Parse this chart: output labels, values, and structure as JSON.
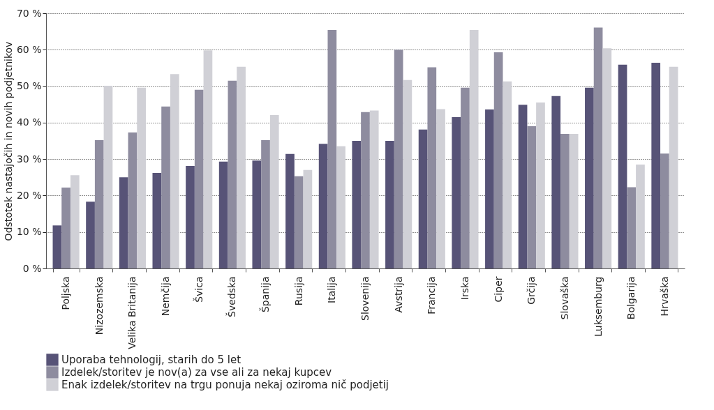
{
  "chart_data": {
    "type": "bar",
    "ylabel": "Odstotek nastajočih in novih podjetnikov",
    "categories": [
      "Poljska",
      "Nizozemska",
      "Velika Britanija",
      "Nemčija",
      "Švica",
      "Švedska",
      "Španija",
      "Rusija",
      "Italija",
      "Slovenija",
      "Avstrija",
      "Francija",
      "Irska",
      "Ciper",
      "Grčija",
      "Slovaška",
      "Luksemburg",
      "Bolgarija",
      "Hrvaška"
    ],
    "series": [
      {
        "name": "Uporaba tehnologij, starih do 5 let",
        "color": "#575377",
        "values": [
          11.8,
          18.3,
          25.0,
          26.2,
          28.1,
          29.3,
          29.6,
          31.4,
          34.2,
          35.0,
          35.0,
          38.1,
          41.5,
          43.6,
          44.9,
          47.3,
          49.6,
          55.9,
          56.4
        ]
      },
      {
        "name": "Izdelek/storitev je nov(a) za vse ali za nekaj kupcev",
        "color": "#8e8c9f",
        "values": [
          22.2,
          35.2,
          37.3,
          44.4,
          49.0,
          51.5,
          35.2,
          25.3,
          65.4,
          42.9,
          60.0,
          55.2,
          49.6,
          59.3,
          39.0,
          36.9,
          66.1,
          22.3,
          31.5
        ]
      },
      {
        "name": "Enak izdelek/storitev na trgu ponuja nekaj oziroma nič podjetij",
        "color": "#d0d0d6",
        "values": [
          25.6,
          50.1,
          49.6,
          53.3,
          59.8,
          55.3,
          42.1,
          27.0,
          33.5,
          43.3,
          51.7,
          43.7,
          65.4,
          51.3,
          45.5,
          36.9,
          60.4,
          28.5,
          55.3
        ]
      }
    ],
    "ylim": [
      0,
      70
    ],
    "yticks": [
      {
        "value": 0,
        "label": "0 %"
      },
      {
        "value": 10,
        "label": "10 %"
      },
      {
        "value": 20,
        "label": "20 %"
      },
      {
        "value": 30,
        "label": "30 %"
      },
      {
        "value": 40,
        "label": "40 %"
      },
      {
        "value": 50,
        "label": "50 %"
      },
      {
        "value": 60,
        "label": "60 %"
      },
      {
        "value": 70,
        "label": "70 %"
      }
    ],
    "grid": "y",
    "legend": "bottom"
  }
}
